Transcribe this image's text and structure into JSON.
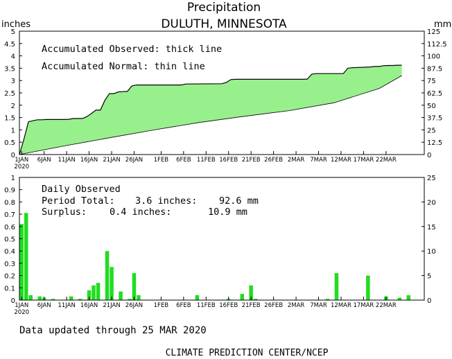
{
  "header": {
    "title": "Precipitation",
    "location": "DULUTH, MINNESOTA",
    "left_unit": "inches",
    "right_unit": "mm"
  },
  "footer": {
    "updated": "Data updated through 25 MAR 2020",
    "credit": "CLIMATE PREDICTION CENTER/NCEP"
  },
  "colors": {
    "fill": "#98F08C",
    "bar": "#20DD20",
    "line": "#000000"
  },
  "chart_data": [
    {
      "type": "area",
      "annotations": [
        "Accumulated Observed: thick line",
        "Accumulated Normal: thin line"
      ],
      "x_ticks": [
        "1JAN",
        "6JAN",
        "11JAN",
        "16JAN",
        "21JAN",
        "26JAN",
        "1FEB",
        "6FEB",
        "11FEB",
        "16FEB",
        "21FEB",
        "26FEB",
        "2MAR",
        "7MAR",
        "12MAR",
        "17MAR",
        "22MAR"
      ],
      "x_tick_year": "2020",
      "ylim": [
        0,
        5
      ],
      "y_ticks": [
        "0",
        "0.5",
        "1",
        "1.5",
        "2",
        "2.5",
        "3",
        "3.5",
        "4",
        "4.5",
        "5"
      ],
      "y2_ticks": [
        "0",
        "12.5",
        "25",
        "37.5",
        "50",
        "62.5",
        "75",
        "87.5",
        "100",
        "112.5",
        "125"
      ],
      "series": [
        {
          "name": "Accumulated Observed",
          "points": [
            [
              0,
              0
            ],
            [
              1,
              0.62
            ],
            [
              2,
              1.33
            ],
            [
              3,
              1.37
            ],
            [
              4,
              1.41
            ],
            [
              5,
              1.41
            ],
            [
              6,
              1.42
            ],
            [
              7,
              1.42
            ],
            [
              8,
              1.42
            ],
            [
              9,
              1.42
            ],
            [
              10,
              1.42
            ],
            [
              11,
              1.43
            ],
            [
              12,
              1.46
            ],
            [
              13,
              1.46
            ],
            [
              14,
              1.46
            ],
            [
              15,
              1.54
            ],
            [
              16,
              1.66
            ],
            [
              17,
              1.8
            ],
            [
              18,
              1.8
            ],
            [
              19,
              2.2
            ],
            [
              20,
              2.47
            ],
            [
              21,
              2.47
            ],
            [
              22,
              2.54
            ],
            [
              23,
              2.55
            ],
            [
              24,
              2.56
            ],
            [
              25,
              2.78
            ],
            [
              26,
              2.82
            ],
            [
              27,
              2.82
            ],
            [
              36,
              2.82
            ],
            [
              37,
              2.86
            ],
            [
              45,
              2.87
            ],
            [
              46,
              2.92
            ],
            [
              47,
              3.04
            ],
            [
              48,
              3.05
            ],
            [
              63,
              3.05
            ],
            [
              64,
              3.06
            ],
            [
              65,
              3.26
            ],
            [
              66,
              3.28
            ],
            [
              72,
              3.28
            ],
            [
              73,
              3.5
            ],
            [
              74,
              3.52
            ],
            [
              78,
              3.55
            ],
            [
              79,
              3.57
            ],
            [
              80,
              3.57
            ],
            [
              81,
              3.6
            ],
            [
              82,
              3.61
            ],
            [
              83,
              3.61
            ],
            [
              84,
              3.62
            ],
            [
              85,
              3.62
            ]
          ]
        },
        {
          "name": "Accumulated Normal",
          "points": [
            [
              0,
              0
            ],
            [
              10,
              0.35
            ],
            [
              20,
              0.68
            ],
            [
              30,
              1.0
            ],
            [
              40,
              1.3
            ],
            [
              50,
              1.55
            ],
            [
              60,
              1.78
            ],
            [
              70,
              2.1
            ],
            [
              80,
              2.68
            ],
            [
              85,
              3.2
            ]
          ]
        }
      ]
    },
    {
      "type": "bar",
      "title": "Daily Observed",
      "stats": {
        "period_label": "Period Total:",
        "period_in": "3.6 inches:",
        "period_mm": "92.6 mm",
        "surplus_label": "Surplus:",
        "surplus_in": "0.4 inches:",
        "surplus_mm": "10.9 mm"
      },
      "ylim": [
        0,
        1
      ],
      "y_ticks": [
        "0",
        "0.1",
        "0.2",
        "0.3",
        "0.4",
        "0.5",
        "0.6",
        "0.7",
        "0.8",
        "0.9",
        "1"
      ],
      "y2_ticks": [
        "0",
        "5",
        "10",
        "15",
        "20",
        "25"
      ],
      "x_ticks": [
        "1JAN",
        "6JAN",
        "11JAN",
        "16JAN",
        "21JAN",
        "26JAN",
        "1FEB",
        "6FEB",
        "11FEB",
        "16FEB",
        "21FEB",
        "26FEB",
        "2MAR",
        "7MAR",
        "12MAR",
        "17MAR",
        "22MAR"
      ],
      "x_tick_year": "2020",
      "bars": [
        [
          1,
          0.62
        ],
        [
          2,
          0.71
        ],
        [
          3,
          0.04
        ],
        [
          5,
          0.03
        ],
        [
          6,
          0.02
        ],
        [
          8,
          0.01
        ],
        [
          12,
          0.03
        ],
        [
          14,
          0.01
        ],
        [
          16,
          0.08
        ],
        [
          17,
          0.12
        ],
        [
          18,
          0.14
        ],
        [
          20,
          0.4
        ],
        [
          21,
          0.27
        ],
        [
          23,
          0.07
        ],
        [
          25,
          0.01
        ],
        [
          26,
          0.22
        ],
        [
          27,
          0.04
        ],
        [
          40,
          0.04
        ],
        [
          47,
          0.01
        ],
        [
          50,
          0.05
        ],
        [
          52,
          0.12
        ],
        [
          53,
          0.01
        ],
        [
          69,
          0.01
        ],
        [
          71,
          0.22
        ],
        [
          78,
          0.2
        ],
        [
          82,
          0.03
        ],
        [
          85,
          0.02
        ],
        [
          87,
          0.04
        ]
      ]
    }
  ]
}
